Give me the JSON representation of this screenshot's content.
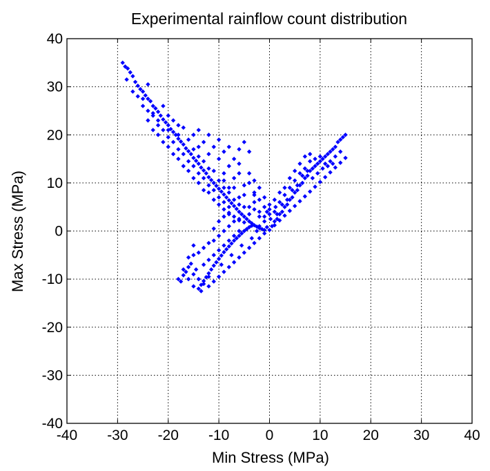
{
  "chart_data": {
    "type": "scatter",
    "title": "Experimental rainflow count distribution",
    "xlabel": "Min Stress (MPa)",
    "ylabel": "Max Stress (MPa)",
    "xlim": [
      -40,
      40
    ],
    "ylim": [
      -40,
      40
    ],
    "xticks": [
      "-40",
      "-30",
      "-20",
      "-10",
      "0",
      "10",
      "20",
      "30",
      "40"
    ],
    "yticks": [
      "-40",
      "-30",
      "-20",
      "-10",
      "0",
      "10",
      "20",
      "30",
      "40"
    ],
    "grid": true,
    "grid_style": "dotted",
    "marker": "diamond",
    "marker_color": "#0000ff",
    "series": [
      {
        "points": [
          [
            -29,
            35
          ],
          [
            -28.5,
            34.2
          ],
          [
            -28,
            33.8
          ],
          [
            -27.5,
            33
          ],
          [
            -27,
            32.2
          ],
          [
            -28.2,
            31.5
          ],
          [
            -26.5,
            31
          ],
          [
            -26,
            30.2
          ],
          [
            -25.5,
            29.5
          ],
          [
            -25,
            29
          ],
          [
            -24.5,
            28.2
          ],
          [
            -24,
            27.5
          ],
          [
            -23.5,
            27
          ],
          [
            -23,
            26
          ],
          [
            -22.5,
            25.5
          ],
          [
            -22,
            24.8
          ],
          [
            -21.5,
            24
          ],
          [
            -21,
            23.2
          ],
          [
            -20.5,
            22.6
          ],
          [
            -20,
            22
          ],
          [
            -19.5,
            21.2
          ],
          [
            -19,
            20.6
          ],
          [
            -18.5,
            20
          ],
          [
            -18,
            19.2
          ],
          [
            -17.5,
            18.6
          ],
          [
            -17,
            18
          ],
          [
            -16.5,
            17.2
          ],
          [
            -16,
            16.6
          ],
          [
            -15.5,
            16
          ],
          [
            -15,
            15.2
          ],
          [
            -14.5,
            14.6
          ],
          [
            -14,
            14
          ],
          [
            -13.5,
            13.2
          ],
          [
            -13,
            12.6
          ],
          [
            -12.5,
            12
          ],
          [
            -12,
            11.2
          ],
          [
            -11.5,
            10.6
          ],
          [
            -11,
            10
          ],
          [
            -10.5,
            9.4
          ],
          [
            -10,
            8.8
          ],
          [
            -9.5,
            8.2
          ],
          [
            -9,
            7.6
          ],
          [
            -8.5,
            7
          ],
          [
            -8,
            6.4
          ],
          [
            -7.5,
            5.8
          ],
          [
            -7,
            5.2
          ],
          [
            -6.5,
            4.6
          ],
          [
            -6,
            4
          ],
          [
            -5.5,
            3.5
          ],
          [
            -5,
            3
          ],
          [
            -4.5,
            2.5
          ],
          [
            -4,
            2
          ],
          [
            -3.5,
            1.6
          ],
          [
            -3,
            1.2
          ],
          [
            -2.5,
            0.9
          ],
          [
            -2,
            0.6
          ],
          [
            -1.5,
            0.4
          ],
          [
            -1,
            0.2
          ],
          [
            -27,
            29
          ],
          [
            -26,
            28
          ],
          [
            -25,
            26
          ],
          [
            -24,
            25
          ],
          [
            -23,
            24
          ],
          [
            -22,
            22
          ],
          [
            -21,
            21
          ],
          [
            -20,
            19.5
          ],
          [
            -19,
            18.5
          ],
          [
            -18,
            17
          ],
          [
            -17,
            16
          ],
          [
            -16,
            14.5
          ],
          [
            -15,
            13.5
          ],
          [
            -14,
            12
          ],
          [
            -13,
            11
          ],
          [
            -12,
            9.5
          ],
          [
            -11,
            8.5
          ],
          [
            -10,
            7
          ],
          [
            -9,
            6
          ],
          [
            -8,
            5
          ],
          [
            -24,
            23
          ],
          [
            -22,
            20
          ],
          [
            -20,
            17.5
          ],
          [
            -18,
            15
          ],
          [
            -16,
            12.5
          ],
          [
            -14,
            10
          ],
          [
            -12,
            8
          ],
          [
            -10,
            5.5
          ],
          [
            -8,
            3.5
          ],
          [
            -6,
            2.2
          ],
          [
            -19,
            16
          ],
          [
            -17,
            13.5
          ],
          [
            -15,
            11
          ],
          [
            -13,
            8.5
          ],
          [
            -11,
            6.5
          ],
          [
            -9,
            4.5
          ],
          [
            -7,
            3
          ],
          [
            -5,
            1.8
          ],
          [
            -21,
            18.5
          ],
          [
            -23,
            21
          ],
          [
            -19,
            23
          ],
          [
            -17,
            21.5
          ],
          [
            -15,
            20
          ],
          [
            -13,
            18.5
          ],
          [
            -11,
            17.5
          ],
          [
            -9,
            16.5
          ],
          [
            -7,
            15
          ],
          [
            -6,
            17
          ],
          [
            -5,
            18.5
          ],
          [
            -4,
            16.5
          ],
          [
            -14,
            21
          ],
          [
            -12,
            20
          ],
          [
            -10,
            19
          ],
          [
            -8,
            17.5
          ],
          [
            -6,
            14
          ],
          [
            -4,
            12
          ],
          [
            -3,
            10.5
          ],
          [
            -2,
            9
          ],
          [
            -1,
            7
          ],
          [
            0,
            5.5
          ],
          [
            -10,
            15
          ],
          [
            -8,
            13.5
          ],
          [
            -6,
            12
          ],
          [
            -4,
            10
          ],
          [
            -3,
            8
          ],
          [
            -2,
            6.5
          ],
          [
            -1,
            5
          ],
          [
            0,
            3.5
          ],
          [
            -12,
            16
          ],
          [
            -14,
            17.5
          ],
          [
            -16,
            19
          ],
          [
            -18,
            20
          ],
          [
            -20,
            21
          ],
          [
            -22,
            23
          ],
          [
            -25,
            27.5
          ],
          [
            -23,
            24.5
          ],
          [
            -18,
            22
          ],
          [
            -20,
            24
          ],
          [
            -21,
            26
          ],
          [
            -24,
            30.5
          ],
          [
            -15,
            17
          ],
          [
            -13,
            14.5
          ],
          [
            -11,
            12.5
          ],
          [
            -9,
            10.5
          ],
          [
            -7,
            9
          ],
          [
            -5,
            7.5
          ],
          [
            -3,
            6
          ],
          [
            -2,
            4
          ],
          [
            -9,
            12
          ],
          [
            -7,
            11
          ],
          [
            -5,
            9.5
          ],
          [
            -3,
            7.5
          ],
          [
            -8,
            9
          ],
          [
            -6,
            7
          ],
          [
            -4,
            5
          ],
          [
            -2,
            3
          ],
          [
            -1,
            2
          ],
          [
            -10,
            10.5
          ],
          [
            -12,
            13
          ],
          [
            -14,
            15.5
          ],
          [
            -18,
            -10
          ],
          [
            -17.5,
            -10.5
          ],
          [
            -17,
            -9.2
          ],
          [
            -16.5,
            -8.5
          ],
          [
            -16,
            -7.5
          ],
          [
            -15.5,
            -6.8
          ],
          [
            -15,
            -9
          ],
          [
            -14.5,
            -8
          ],
          [
            -14,
            -12
          ],
          [
            -13.5,
            -11.2
          ],
          [
            -13,
            -10.4
          ],
          [
            -12.5,
            -9.6
          ],
          [
            -12,
            -8.8
          ],
          [
            -11.5,
            -8
          ],
          [
            -11,
            -7.2
          ],
          [
            -10.5,
            -6.5
          ],
          [
            -10,
            -5.8
          ],
          [
            -9.5,
            -5.1
          ],
          [
            -9,
            -4.4
          ],
          [
            -8.5,
            -3.8
          ],
          [
            -8,
            -3.2
          ],
          [
            -7.5,
            -2.6
          ],
          [
            -7,
            -2
          ],
          [
            -6.5,
            -1.5
          ],
          [
            -6,
            -1
          ],
          [
            -5.5,
            -0.5
          ],
          [
            -5,
            0
          ],
          [
            -4.5,
            0.4
          ],
          [
            -4,
            0.8
          ],
          [
            -3.5,
            1.1
          ],
          [
            -13,
            -7
          ],
          [
            -12,
            -6
          ],
          [
            -11,
            -5
          ],
          [
            -10,
            -4
          ],
          [
            -9,
            -3
          ],
          [
            -8,
            -2
          ],
          [
            -7,
            -1
          ],
          [
            -6,
            0
          ],
          [
            -15,
            -5
          ],
          [
            -14,
            -4.5
          ],
          [
            -13,
            -3.5
          ],
          [
            -12,
            -2.5
          ],
          [
            -11,
            -2
          ],
          [
            -10,
            -1
          ],
          [
            -9,
            0
          ],
          [
            -8,
            1
          ],
          [
            -7,
            2
          ],
          [
            -6,
            2.5
          ],
          [
            -16,
            -5.5
          ],
          [
            -15,
            -3
          ],
          [
            -11,
            0.5
          ],
          [
            -10,
            2
          ],
          [
            -9,
            3
          ],
          [
            -8,
            3.8
          ],
          [
            -12,
            -11.5
          ],
          [
            -11,
            -10.5
          ],
          [
            -10,
            -9.5
          ],
          [
            -9,
            -8.5
          ],
          [
            -8,
            -7.5
          ],
          [
            -7,
            -6.5
          ],
          [
            -6,
            -5.5
          ],
          [
            -5,
            -4.5
          ],
          [
            -4,
            -3.5
          ],
          [
            -3,
            -2.5
          ],
          [
            -2,
            -1.5
          ],
          [
            -1,
            -0.5
          ],
          [
            -13.5,
            -12.5
          ],
          [
            -9.5,
            -7
          ],
          [
            -7.5,
            -5
          ],
          [
            -5.5,
            -3
          ],
          [
            -3.5,
            -1.5
          ],
          [
            -2.5,
            0
          ],
          [
            -14,
            -10
          ],
          [
            -17,
            -8
          ],
          [
            -16,
            -10
          ],
          [
            -15,
            -11.5
          ],
          [
            -13,
            -11
          ],
          [
            -12,
            -9.5
          ],
          [
            0.5,
            1
          ],
          [
            1,
            2
          ],
          [
            1.5,
            2.5
          ],
          [
            2,
            3.5
          ],
          [
            2.5,
            4
          ],
          [
            3,
            5
          ],
          [
            3.5,
            5.5
          ],
          [
            4,
            6.5
          ],
          [
            4.5,
            7
          ],
          [
            5,
            8
          ],
          [
            5.5,
            8.5
          ],
          [
            6,
            9.5
          ],
          [
            6.5,
            10
          ],
          [
            7,
            11
          ],
          [
            7.5,
            11.5
          ],
          [
            8,
            12.5
          ],
          [
            8.5,
            13
          ],
          [
            9,
            13.5
          ],
          [
            9.5,
            14
          ],
          [
            10,
            14.5
          ],
          [
            10.5,
            15
          ],
          [
            11,
            15.5
          ],
          [
            11.5,
            16
          ],
          [
            12,
            16.5
          ],
          [
            12.5,
            17
          ],
          [
            13,
            17.5
          ],
          [
            13.5,
            18.5
          ],
          [
            14,
            19
          ],
          [
            14.5,
            19.5
          ],
          [
            15,
            20
          ],
          [
            1,
            1.2
          ],
          [
            2,
            2.2
          ],
          [
            3,
            3.2
          ],
          [
            4,
            4.2
          ],
          [
            5,
            5.2
          ],
          [
            6,
            6.2
          ],
          [
            7,
            7.2
          ],
          [
            8,
            8.2
          ],
          [
            9,
            9.2
          ],
          [
            10,
            10.2
          ],
          [
            11,
            11.2
          ],
          [
            12,
            12.2
          ],
          [
            13,
            13.2
          ],
          [
            14,
            14.2
          ],
          [
            15,
            15.2
          ],
          [
            1,
            4
          ],
          [
            2,
            6
          ],
          [
            3,
            7.5
          ],
          [
            4,
            9
          ],
          [
            5,
            10.5
          ],
          [
            6,
            12
          ],
          [
            7,
            13
          ],
          [
            8,
            14.5
          ],
          [
            9,
            15
          ],
          [
            10,
            15.5
          ],
          [
            11,
            14
          ],
          [
            12,
            14.5
          ],
          [
            13,
            15.5
          ],
          [
            14,
            16.5
          ],
          [
            3,
            9
          ],
          [
            4,
            11
          ],
          [
            5,
            12.5
          ],
          [
            6,
            14
          ],
          [
            7,
            15.5
          ],
          [
            8,
            16
          ],
          [
            2,
            8
          ],
          [
            1,
            6.5
          ],
          [
            0,
            4.5
          ],
          [
            1.5,
            3.5
          ],
          [
            2.5,
            5.5
          ],
          [
            3.5,
            6.5
          ],
          [
            4.5,
            8.5
          ],
          [
            5.5,
            9.5
          ],
          [
            6.5,
            11.5
          ],
          [
            7.5,
            12.5
          ],
          [
            8.5,
            11
          ],
          [
            9.5,
            12
          ],
          [
            10.5,
            13
          ],
          [
            11.5,
            13.5
          ],
          [
            12.5,
            14
          ],
          [
            -0.5,
            0.8
          ],
          [
            0,
            0.2
          ],
          [
            -1,
            3
          ],
          [
            -2,
            1
          ],
          [
            0.2,
            2.5
          ],
          [
            -0.5,
            4
          ],
          [
            1.2,
            5
          ],
          [
            -3,
            4.5
          ],
          [
            -4,
            3.5
          ],
          [
            -5,
            5
          ],
          [
            -6,
            5.5
          ],
          [
            -7,
            6.5
          ],
          [
            -8,
            8
          ],
          [
            -9,
            9
          ]
        ]
      }
    ]
  }
}
